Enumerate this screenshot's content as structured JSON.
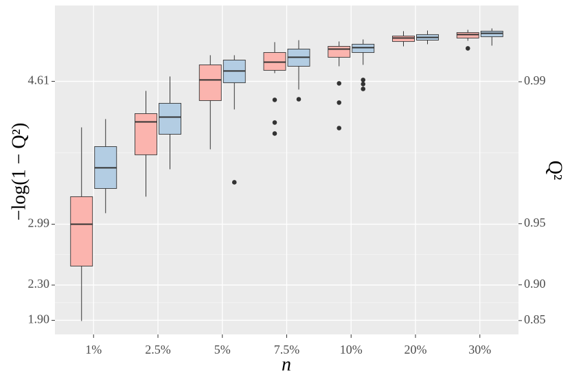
{
  "chart_data": {
    "type": "box",
    "x_label": "n",
    "y_label": "−log(1 − Q²)",
    "y2_label": "Q²",
    "categories": [
      "1%",
      "2.5%",
      "5%",
      "7.5%",
      "10%",
      "20%",
      "30%"
    ],
    "ylim": [
      1.74,
      5.47
    ],
    "yticks": [
      {
        "value": 1.9,
        "label": "1.90"
      },
      {
        "value": 2.3,
        "label": "2.30"
      },
      2.99,
      4.61
    ],
    "y2_scale": "-log(1-x)",
    "y2ticks": [
      0.85,
      {
        "value": 0.9,
        "label": "0.90"
      },
      0.95,
      0.99
    ],
    "grid": true,
    "series": [
      {
        "color": "#fbb4ae",
        "boxes": [
          {
            "whisker_low": 1.892,
            "q1": 2.515,
            "median": 2.99,
            "q3": 3.302,
            "whisker_high": 4.088,
            "outliers": []
          },
          {
            "whisker_low": 3.302,
            "q1": 3.777,
            "median": 4.15,
            "q3": 4.244,
            "whisker_high": 4.501,
            "outliers": []
          },
          {
            "whisker_low": 3.839,
            "q1": 4.392,
            "median": 4.626,
            "q3": 4.797,
            "whisker_high": 4.906,
            "outliers": []
          },
          {
            "whisker_low": 4.703,
            "q1": 4.735,
            "median": 4.828,
            "q3": 4.937,
            "whisker_high": 5.054,
            "outliers": [
              4.4,
              4.143,
              4.018
            ]
          },
          {
            "whisker_low": 4.781,
            "q1": 4.883,
            "median": 4.976,
            "q3": 5.007,
            "whisker_high": 5.062,
            "outliers": [
              4.587,
              4.369,
              4.08
            ]
          },
          {
            "whisker_low": 5.007,
            "q1": 5.062,
            "median": 5.101,
            "q3": 5.124,
            "whisker_high": 5.179,
            "outliers": []
          },
          {
            "whisker_low": 5.07,
            "q1": 5.101,
            "median": 5.14,
            "q3": 5.163,
            "whisker_high": 5.194,
            "outliers": [
              4.984
            ]
          }
        ]
      },
      {
        "color": "#b3cde3",
        "boxes": [
          {
            "whisker_low": 3.115,
            "q1": 3.395,
            "median": 3.629,
            "q3": 3.87,
            "whisker_high": 4.182,
            "outliers": []
          },
          {
            "whisker_low": 3.613,
            "q1": 4.01,
            "median": 4.205,
            "q3": 4.361,
            "whisker_high": 4.665,
            "outliers": []
          },
          {
            "whisker_low": 4.291,
            "q1": 4.594,
            "median": 4.727,
            "q3": 4.851,
            "whisker_high": 4.906,
            "outliers": [
              3.465
            ]
          },
          {
            "whisker_low": 4.517,
            "q1": 4.781,
            "median": 4.883,
            "q3": 4.976,
            "whisker_high": 5.077,
            "outliers": [
              4.407
            ]
          },
          {
            "whisker_low": 4.797,
            "q1": 4.937,
            "median": 4.992,
            "q3": 5.031,
            "whisker_high": 5.085,
            "outliers": [
              4.626,
              4.579,
              4.524
            ]
          },
          {
            "whisker_low": 5.031,
            "q1": 5.077,
            "median": 5.108,
            "q3": 5.14,
            "whisker_high": 5.186,
            "outliers": []
          },
          {
            "whisker_low": 5.015,
            "q1": 5.116,
            "median": 5.155,
            "q3": 5.179,
            "whisker_high": 5.21,
            "outliers": []
          }
        ]
      }
    ]
  }
}
